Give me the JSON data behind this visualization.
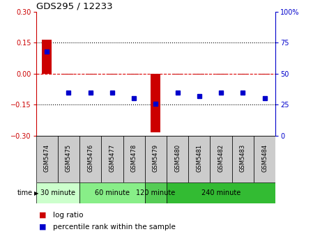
{
  "title": "GDS295 / 12233",
  "samples": [
    "GSM5474",
    "GSM5475",
    "GSM5476",
    "GSM5477",
    "GSM5478",
    "GSM5479",
    "GSM5480",
    "GSM5481",
    "GSM5482",
    "GSM5483",
    "GSM5484"
  ],
  "log_ratio": [
    0.163,
    -0.005,
    -0.005,
    -0.005,
    -0.005,
    -0.285,
    -0.005,
    -0.005,
    -0.005,
    -0.005,
    -0.005
  ],
  "percentile_rank": [
    68,
    35,
    35,
    35,
    30,
    26,
    35,
    32,
    35,
    35,
    30
  ],
  "ylim_left": [
    -0.3,
    0.3
  ],
  "ylim_right": [
    0,
    100
  ],
  "yticks_left": [
    -0.3,
    -0.15,
    0,
    0.15,
    0.3
  ],
  "yticks_right": [
    0,
    25,
    50,
    75,
    100
  ],
  "left_color": "#cc0000",
  "right_color": "#0000cc",
  "bar_color": "#cc0000",
  "dot_color": "#0000cc",
  "hline_color": "#dd0000",
  "dotted_color": "#000000",
  "time_groups": [
    {
      "label": "30 minute",
      "start": 0,
      "end": 2,
      "color": "#ccffcc"
    },
    {
      "label": "60 minute",
      "start": 2,
      "end": 5,
      "color": "#88ee88"
    },
    {
      "label": "120 minute",
      "start": 5,
      "end": 6,
      "color": "#55cc55"
    },
    {
      "label": "240 minute",
      "start": 6,
      "end": 11,
      "color": "#33bb33"
    }
  ],
  "legend_log_ratio": "log ratio",
  "legend_percentile": "percentile rank within the sample",
  "time_label": "time",
  "label_bg": "#cccccc",
  "bg_color": "#ffffff",
  "bar_width": 0.45
}
